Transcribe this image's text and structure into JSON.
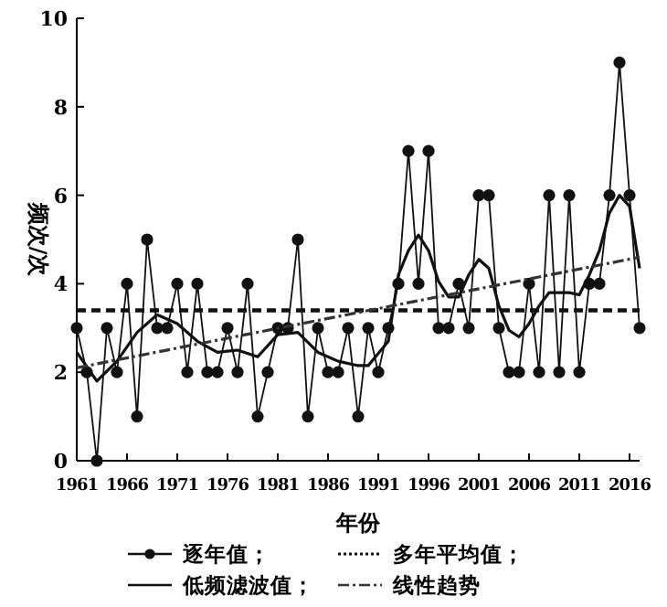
{
  "chart_data": {
    "type": "line",
    "xlabel": "年份",
    "ylabel": "频次/次",
    "xlim": [
      1961,
      2017
    ],
    "xticks": [
      1961,
      1966,
      1971,
      1976,
      1981,
      1986,
      1991,
      1996,
      2001,
      2006,
      2011,
      2016
    ],
    "ylim": [
      0,
      10
    ],
    "yticks": [
      0,
      2,
      4,
      6,
      8,
      10
    ],
    "grid": false,
    "legend": "bottom",
    "series": [
      {
        "name": "逐年值；",
        "color": "#111111",
        "marker": "circle",
        "line_style": "solid",
        "x": [
          1961,
          1962,
          1963,
          1964,
          1965,
          1966,
          1967,
          1968,
          1969,
          1970,
          1971,
          1972,
          1973,
          1974,
          1975,
          1976,
          1977,
          1978,
          1979,
          1980,
          1981,
          1982,
          1983,
          1984,
          1985,
          1986,
          1987,
          1988,
          1989,
          1990,
          1991,
          1992,
          1993,
          1994,
          1995,
          1996,
          1997,
          1998,
          1999,
          2000,
          2001,
          2002,
          2003,
          2004,
          2005,
          2006,
          2007,
          2008,
          2009,
          2010,
          2011,
          2012,
          2013,
          2014,
          2015,
          2016,
          2017
        ],
        "values": [
          3,
          2,
          0,
          3,
          2,
          4,
          1,
          5,
          3,
          3,
          4,
          2,
          4,
          2,
          2,
          3,
          2,
          4,
          1,
          2,
          3,
          3,
          5,
          1,
          3,
          2,
          2,
          3,
          1,
          3,
          2,
          3,
          4,
          7,
          4,
          7,
          3,
          3,
          4,
          3,
          6,
          6,
          3,
          2,
          2,
          4,
          2,
          6,
          2,
          6,
          2,
          4,
          4,
          6,
          9,
          6,
          3
        ]
      },
      {
        "name": "多年平均值；",
        "color": "#111111",
        "marker": "none",
        "line_style": "dashed",
        "x": [
          1961,
          2017
        ],
        "values": [
          3.4,
          3.4
        ]
      },
      {
        "name": "低频滤波值；",
        "color": "#111111",
        "marker": "none",
        "line_style": "solid",
        "x": [
          1961,
          1963,
          1965,
          1967,
          1969,
          1971,
          1973,
          1975,
          1977,
          1979,
          1981,
          1983,
          1985,
          1987,
          1989,
          1990,
          1992,
          1993,
          1994,
          1995,
          1996,
          1997,
          1998,
          1999,
          2000,
          2001,
          2002,
          2003,
          2004,
          2005,
          2006,
          2007,
          2008,
          2009,
          2010,
          2011,
          2012,
          2013,
          2014,
          2015,
          2016,
          2017
        ],
        "values": [
          2.45,
          1.8,
          2.25,
          2.9,
          3.3,
          3.1,
          2.7,
          2.45,
          2.5,
          2.35,
          2.85,
          2.9,
          2.45,
          2.25,
          2.15,
          2.15,
          2.7,
          4.2,
          4.75,
          5.1,
          4.75,
          4.05,
          3.7,
          3.7,
          4.2,
          4.55,
          4.35,
          3.5,
          2.95,
          2.8,
          3.1,
          3.5,
          3.8,
          3.8,
          3.8,
          3.75,
          4.2,
          4.75,
          5.6,
          6.0,
          5.75,
          4.35
        ]
      },
      {
        "name": "线性趋势",
        "color": "#333333",
        "marker": "none",
        "line_style": "dashdot",
        "x": [
          1961,
          2017
        ],
        "values": [
          2.1,
          4.6
        ]
      }
    ]
  }
}
